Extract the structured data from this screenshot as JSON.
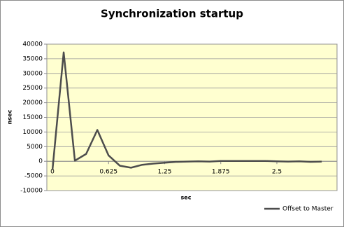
{
  "chart_data": {
    "type": "line",
    "title": "Synchronization startup",
    "x_label": "sec",
    "y_label": "nsec",
    "x": [
      0,
      0.125,
      0.25,
      0.375,
      0.5,
      0.625,
      0.75,
      0.875,
      1.0,
      1.125,
      1.25,
      1.375,
      1.5,
      1.625,
      1.75,
      1.875,
      2.0,
      2.125,
      2.25,
      2.375,
      2.5,
      2.625,
      2.75,
      2.875,
      3.0
    ],
    "series": [
      {
        "name": "Offset to Master",
        "color": "#4d4d4d",
        "values": [
          -3000,
          37200,
          200,
          2500,
          10700,
          2000,
          -1500,
          -2200,
          -1200,
          -800,
          -500,
          -200,
          -100,
          0,
          -100,
          100,
          100,
          100,
          100,
          100,
          0,
          -100,
          0,
          -200,
          -100
        ]
      }
    ],
    "xlim": [
      -0.0625,
      3.17
    ],
    "xticks": [
      0,
      0.625,
      1.25,
      1.875,
      2.5
    ],
    "ylim": [
      -10000,
      40000
    ],
    "yticks": [
      -10000,
      -5000,
      0,
      5000,
      10000,
      15000,
      20000,
      25000,
      30000,
      35000,
      40000
    ],
    "grid": true,
    "background": "#ffffd0",
    "legend": "bottom-right"
  }
}
